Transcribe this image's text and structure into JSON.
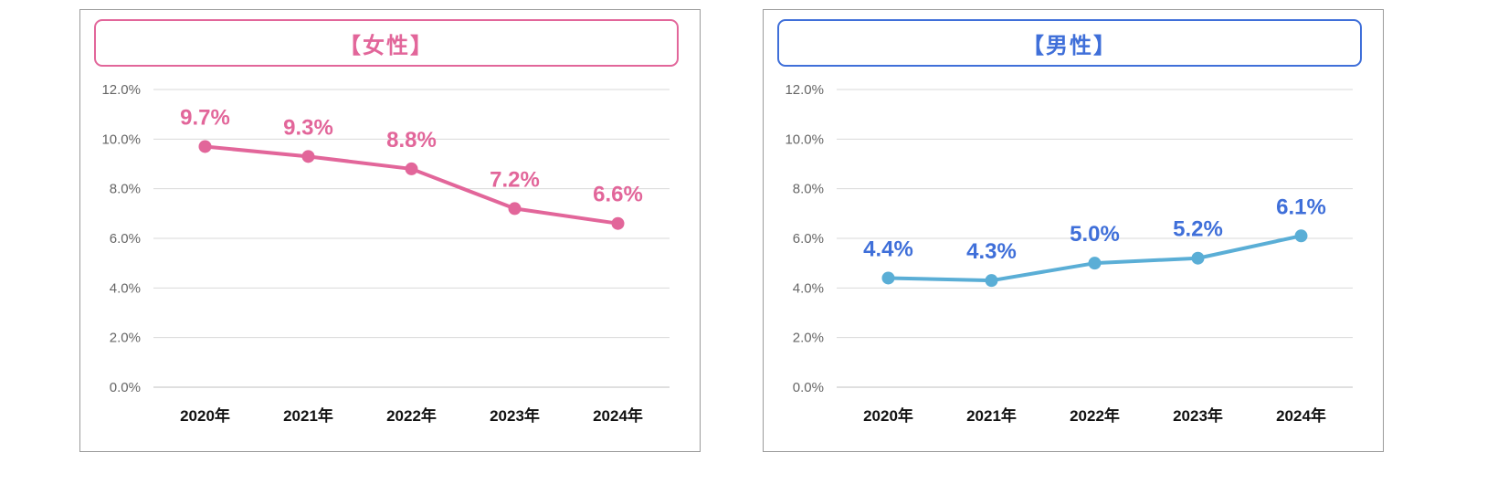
{
  "chart_data": [
    {
      "type": "line",
      "title": "【女性】",
      "categories": [
        "2020年",
        "2021年",
        "2022年",
        "2023年",
        "2024年"
      ],
      "values": [
        9.7,
        9.3,
        8.8,
        7.2,
        6.6
      ],
      "data_labels": [
        "9.7%",
        "9.3%",
        "8.8%",
        "7.2%",
        "6.6%"
      ],
      "y_ticks": [
        "0.0%",
        "2.0%",
        "4.0%",
        "6.0%",
        "8.0%",
        "10.0%",
        "12.0%"
      ],
      "ylim": [
        0,
        12
      ],
      "grid": true,
      "legend": "none",
      "line_color": "#e2669a",
      "label_color": "#e2669a",
      "title_color": "#e2669a"
    },
    {
      "type": "line",
      "title": "【男性】",
      "categories": [
        "2020年",
        "2021年",
        "2022年",
        "2023年",
        "2024年"
      ],
      "values": [
        4.4,
        4.3,
        5.0,
        5.2,
        6.1
      ],
      "data_labels": [
        "4.4%",
        "4.3%",
        "5.0%",
        "5.2%",
        "6.1%"
      ],
      "y_ticks": [
        "0.0%",
        "2.0%",
        "4.0%",
        "6.0%",
        "8.0%",
        "10.0%",
        "12.0%"
      ],
      "ylim": [
        0,
        12
      ],
      "grid": true,
      "legend": "none",
      "line_color": "#5aaed6",
      "label_color": "#3f6fd9",
      "title_color": "#3f6fd9"
    }
  ]
}
